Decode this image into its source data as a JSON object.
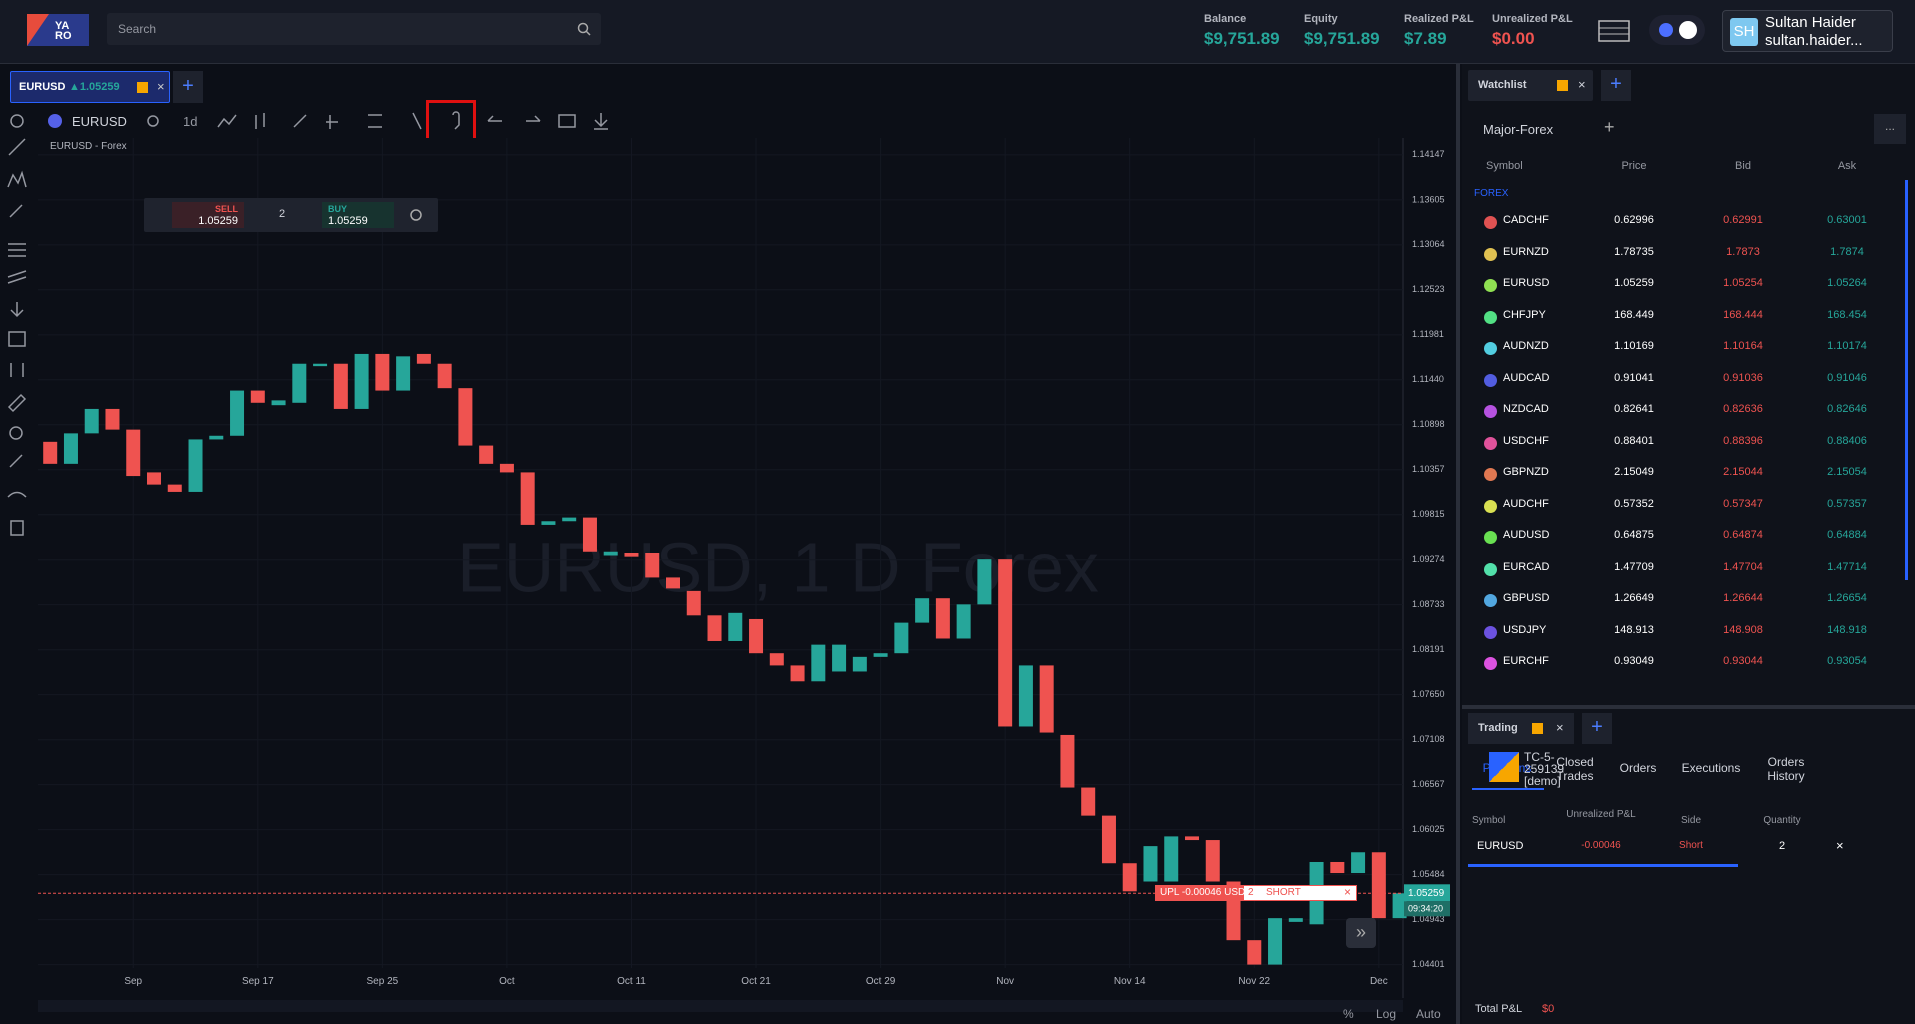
{
  "header": {
    "search_placeholder": "Search",
    "stats": [
      {
        "label": "Balance",
        "value": "$9,751.89"
      },
      {
        "label": "Equity",
        "value": "$9,751.89"
      },
      {
        "label": "Realized P&L",
        "value": "$7.89"
      },
      {
        "label": "Unrealized P&L",
        "value": "$0.00"
      }
    ],
    "user": {
      "initials": "SH",
      "name": "Sultan Haider",
      "email": "sultan.haider..."
    }
  },
  "tab": {
    "symbol": "EURUSD",
    "price": "▲1.05259"
  },
  "toolbar": {
    "symbol": "EURUSD",
    "interval": "1d"
  },
  "chart": {
    "type": "candlestick",
    "label": "EURUSD - Forex",
    "watermark": "EURUSD, 1 D Forex",
    "order_widget": {
      "sell_label": "SELL",
      "sell_price": "1.05259",
      "quantity": "2",
      "buy_label": "BUY",
      "buy_price": "1.05259"
    },
    "position_label": {
      "upl": "UPL -0.00046 USD",
      "quantity": "2",
      "side": "SHORT"
    },
    "last_price": 1.05259,
    "timer": "09:34:20",
    "categories": [
      null,
      null,
      null,
      null,
      "Sep",
      null,
      null,
      null,
      null,
      null,
      "Sep 17",
      null,
      null,
      null,
      null,
      null,
      "Sep 25",
      null,
      null,
      null,
      null,
      null,
      "Oct",
      null,
      null,
      null,
      null,
      null,
      "Oct 11",
      null,
      null,
      null,
      null,
      null,
      "Oct 21",
      null,
      null,
      null,
      null,
      null,
      "Oct 29",
      null,
      null,
      null,
      null,
      null,
      "Nov",
      null,
      null,
      null,
      null,
      null,
      "Nov 14",
      null,
      null,
      null,
      null,
      null,
      "Nov 22",
      null,
      null,
      null,
      null,
      null,
      "Dec",
      null
    ],
    "open": [
      1.10693,
      1.10428,
      1.10795,
      1.11089,
      1.1084,
      1.10325,
      1.10178,
      1.1009,
      1.10722,
      1.10766,
      1.1131,
      1.11134,
      1.11163,
      1.11604,
      1.11633,
      1.11089,
      1.11751,
      1.1131,
      1.11751,
      1.11633,
      1.11339,
      1.10648,
      1.10428,
      1.10325,
      1.09693,
      1.09737,
      1.09781,
      1.09325,
      1.09355,
      1.09355,
      1.09061,
      1.08899,
      1.08605,
      1.08296,
      1.08561,
      1.08149,
      1.08002,
      1.07811,
      1.07929,
      1.07929,
      1.08105,
      1.08149,
      1.08517,
      1.08811,
      1.08326,
      1.08737,
      1.09281,
      1.07267,
      1.08002,
      1.07165,
      1.06532,
      1.06194,
      1.05621,
      1.05401,
      1.05401,
      1.05944,
      1.059,
      1.05401,
      1.04695,
      1.04401,
      1.04915,
      1.04886,
      1.05636,
      1.05503,
      1.05753,
      1.0496
    ],
    "close": [
      1.10428,
      1.10795,
      1.11089,
      1.1084,
      1.10281,
      1.10178,
      1.1009,
      1.10722,
      1.10766,
      1.1131,
      1.11163,
      1.11192,
      1.11633,
      1.11633,
      1.11089,
      1.11751,
      1.1131,
      1.11722,
      1.11633,
      1.11339,
      1.10648,
      1.10428,
      1.10325,
      1.09693,
      1.09737,
      1.09781,
      1.0937,
      1.0937,
      1.09311,
      1.09061,
      1.08929,
      1.08605,
      1.08296,
      1.08635,
      1.08149,
      1.08002,
      1.07811,
      1.08252,
      1.08252,
      1.08105,
      1.08149,
      1.08517,
      1.08811,
      1.08326,
      1.08737,
      1.09281,
      1.07267,
      1.08002,
      1.07194,
      1.06532,
      1.06194,
      1.05621,
      1.05283,
      1.05827,
      1.05944,
      1.059,
      1.05401,
      1.04695,
      1.04401,
      1.0496,
      1.0496,
      1.05636,
      1.05503,
      1.05753,
      1.0496,
      1.05259
    ],
    "up_color": "#26a69a",
    "down_color": "#ef5350",
    "ylim": [
      1.0436,
      1.1435
    ],
    "yticks": [
      1.14147,
      1.13605,
      1.13064,
      1.12523,
      1.11981,
      {
        "value": 1.1144,
        "label": "1.11440"
      },
      1.10898,
      1.10357,
      1.09815,
      1.09274,
      1.08733,
      1.08191,
      {
        "value": 1.0765,
        "label": "1.07650"
      },
      1.07108,
      1.06567,
      1.06025,
      1.05484,
      1.04943,
      1.04401
    ],
    "grid": true,
    "bottom_controls": [
      "%",
      "Log",
      "Auto"
    ]
  },
  "watchlist": {
    "title": "Watchlist",
    "list": "Major-Forex",
    "columns": [
      "Symbol",
      "Price",
      "Bid",
      "Ask"
    ],
    "group": "FOREX",
    "rows": [
      {
        "symbol": "CADCHF",
        "price": "0.62996",
        "bid": "0.62991",
        "ask": "0.63001"
      },
      {
        "symbol": "EURNZD",
        "price": "1.78735",
        "bid": "1.7873",
        "ask": "1.7874"
      },
      {
        "symbol": "EURUSD",
        "price": "1.05259",
        "bid": "1.05254",
        "ask": "1.05264"
      },
      {
        "symbol": "CHFJPY",
        "price": "168.449",
        "bid": "168.444",
        "ask": "168.454"
      },
      {
        "symbol": "AUDNZD",
        "price": "1.10169",
        "bid": "1.10164",
        "ask": "1.10174"
      },
      {
        "symbol": "AUDCAD",
        "price": "0.91041",
        "bid": "0.91036",
        "ask": "0.91046"
      },
      {
        "symbol": "NZDCAD",
        "price": "0.82641",
        "bid": "0.82636",
        "ask": "0.82646"
      },
      {
        "symbol": "USDCHF",
        "price": "0.88401",
        "bid": "0.88396",
        "ask": "0.88406"
      },
      {
        "symbol": "GBPNZD",
        "price": "2.15049",
        "bid": "2.15044",
        "ask": "2.15054"
      },
      {
        "symbol": "AUDCHF",
        "price": "0.57352",
        "bid": "0.57347",
        "ask": "0.57357"
      },
      {
        "symbol": "AUDUSD",
        "price": "0.64875",
        "bid": "0.64874",
        "ask": "0.64884"
      },
      {
        "symbol": "EURCAD",
        "price": "1.47709",
        "bid": "1.47704",
        "ask": "1.47714"
      },
      {
        "symbol": "GBPUSD",
        "price": "1.26649",
        "bid": "1.26644",
        "ask": "1.26654"
      },
      {
        "symbol": "USDJPY",
        "price": "148.913",
        "bid": "148.908",
        "ask": "148.918"
      },
      {
        "symbol": "EURCHF",
        "price": "0.93049",
        "bid": "0.93044",
        "ask": "0.93054"
      }
    ]
  },
  "trading": {
    "title": "Trading",
    "tabs": [
      "Positions",
      "Closed Trades",
      "Orders",
      "Executions",
      "Orders History"
    ],
    "account": "TC-5-259139 [demo]",
    "columns": [
      "Symbol",
      "Unrealized P&L",
      "Side",
      "Quantity"
    ],
    "rows": [
      {
        "symbol": "EURUSD",
        "pnl": "-0.00046",
        "side": "Short",
        "quantity": "2",
        "close": "×"
      }
    ],
    "total_label": "Total P&L",
    "total_value": "$0"
  }
}
